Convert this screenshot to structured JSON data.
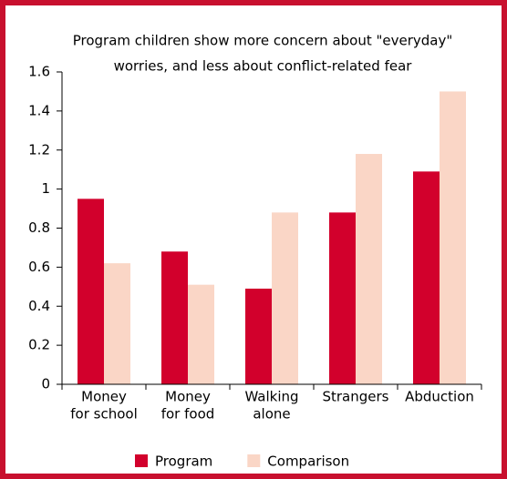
{
  "chart_data": {
    "type": "bar",
    "title": [
      "Program children show more concern about \"everyday\"",
      "worries, and less about conflict-related fear"
    ],
    "categories": [
      [
        "Money",
        "for school"
      ],
      [
        "Money",
        "for food"
      ],
      [
        "Walking",
        "alone"
      ],
      [
        "Strangers"
      ],
      [
        "Abduction"
      ]
    ],
    "series": [
      {
        "name": "Program",
        "color": "#d2002c",
        "values": [
          0.95,
          0.68,
          0.49,
          0.88,
          1.09
        ]
      },
      {
        "name": "Comparison",
        "color": "#fad6c6",
        "values": [
          0.62,
          0.51,
          0.88,
          1.18,
          1.5
        ]
      }
    ],
    "ylim": [
      0,
      1.6
    ],
    "yticks": [
      0,
      0.2,
      0.4,
      0.6,
      0.8,
      1,
      1.2,
      1.4,
      1.6
    ]
  }
}
